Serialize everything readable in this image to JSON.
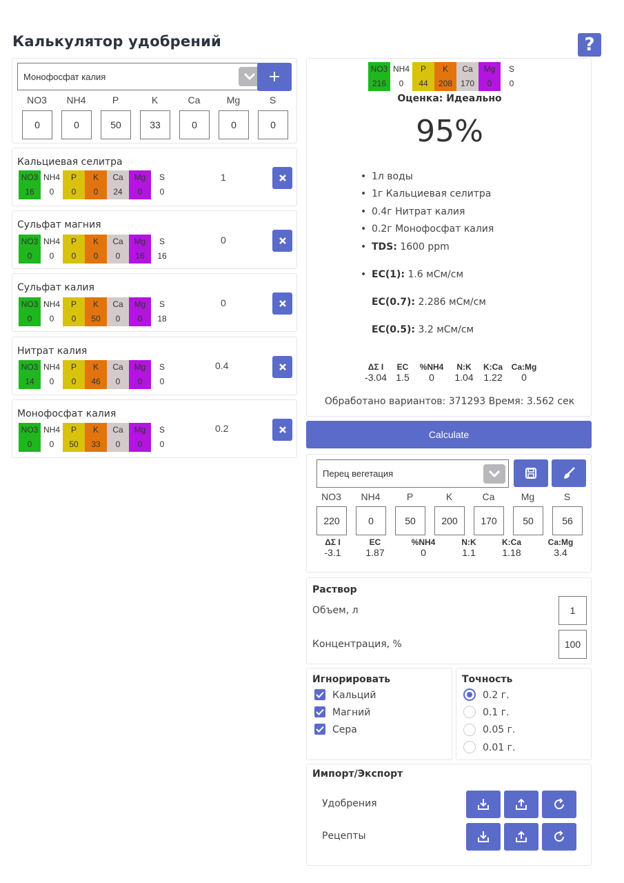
{
  "title": "Калькулятор удобрений",
  "help_label": "?",
  "colors": {
    "accent": "#5b6bc9",
    "NO3": "#1fb61f",
    "NH4": "#ffffff",
    "P": "#d9c20c",
    "K": "#e2740e",
    "Ca": "#d3cbcb",
    "Mg": "#b314e0",
    "S": "#ffffff"
  },
  "elements": [
    "NO3",
    "NH4",
    "P",
    "K",
    "Ca",
    "Mg",
    "S"
  ],
  "add_panel": {
    "selected": "Монофосфат калия",
    "add_label": "+",
    "values": [
      "0",
      "0",
      "50",
      "33",
      "0",
      "0",
      "0"
    ]
  },
  "fertilizers": [
    {
      "name": "Кальциевая селитра",
      "values": [
        "16",
        "0",
        "0",
        "0",
        "24",
        "0",
        "0"
      ],
      "amount": "1"
    },
    {
      "name": "Сульфат магния",
      "values": [
        "0",
        "0",
        "0",
        "0",
        "0",
        "16",
        "16"
      ],
      "amount": "0"
    },
    {
      "name": "Сульфат калия",
      "values": [
        "0",
        "0",
        "0",
        "50",
        "0",
        "0",
        "18"
      ],
      "amount": "0"
    },
    {
      "name": "Нитрат калия",
      "values": [
        "14",
        "0",
        "0",
        "46",
        "0",
        "0",
        "0"
      ],
      "amount": "0.4"
    },
    {
      "name": "Монофосфат калия",
      "values": [
        "0",
        "0",
        "50",
        "33",
        "0",
        "0",
        "0"
      ],
      "amount": "0.2"
    }
  ],
  "result": {
    "values": [
      "216",
      "0",
      "44",
      "208",
      "170",
      "0",
      "0"
    ],
    "rating": "Оценка: Идеально",
    "percent": "95%",
    "items": [
      "1л воды",
      "1г Кальциевая селитра",
      "0.4г Нитрат калия",
      "0.2г Монофосфат калия"
    ],
    "tds_label": "TDS:",
    "tds_value": "1600 ppm",
    "ec1_label": "EC(1):",
    "ec1_value": "1.6 мСм/см",
    "ec07_label": "EC(0.7):",
    "ec07_value": "2.286 мСм/см",
    "ec05_label": "EC(0.5):",
    "ec05_value": "3.2 мСм/см",
    "stats_headers": [
      "ΔΣ I",
      "EC",
      "%NH4",
      "N:K",
      "K:Ca",
      "Ca:Mg"
    ],
    "stats_values": [
      "-3.04",
      "1.5",
      "0",
      "1.04",
      "1.22",
      "0"
    ],
    "processed": "Обработано вариантов: 371293 Время: 3.562 сек"
  },
  "calculate_label": "Calculate",
  "recipe": {
    "selected": "Перец вегетация",
    "values": [
      "220",
      "0",
      "50",
      "200",
      "170",
      "50",
      "56"
    ],
    "stats_headers": [
      "ΔΣ I",
      "EC",
      "%NH4",
      "N:K",
      "K:Ca",
      "Ca:Mg"
    ],
    "stats_values": [
      "-3.1",
      "1.87",
      "0",
      "1.1",
      "1.18",
      "3.4"
    ]
  },
  "solution": {
    "title": "Раствор",
    "volume_label": "Объем, л",
    "volume_value": "1",
    "concentration_label": "Концентрация, %",
    "concentration_value": "100"
  },
  "ignore": {
    "title": "Игнорировать",
    "items": [
      "Кальций",
      "Магний",
      "Сера"
    ]
  },
  "precision": {
    "title": "Точность",
    "options": [
      "0.2 г.",
      "0.1 г.",
      "0.05 г.",
      "0.01 г."
    ],
    "selected": "0.2 г."
  },
  "import_export": {
    "title": "Импорт/Экспорт",
    "fertilizers_label": "Удобрения",
    "recipes_label": "Рецепты"
  }
}
